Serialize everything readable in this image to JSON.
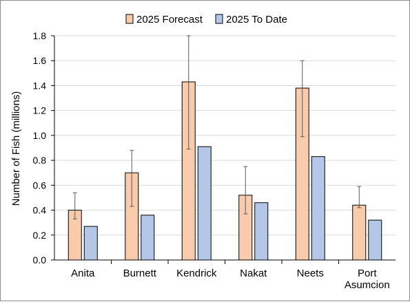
{
  "chart_data": {
    "type": "bar",
    "title": "",
    "xlabel": "",
    "ylabel": "Number of Fish (millions)",
    "categories": [
      [
        "Anita"
      ],
      [
        "Burnett"
      ],
      [
        "Kendrick"
      ],
      [
        "Nakat"
      ],
      [
        "Neets"
      ],
      [
        "Port",
        "Asumcion"
      ]
    ],
    "series": [
      {
        "name": "2025 Forecast",
        "color": "#f8cbad",
        "values": [
          0.4,
          0.7,
          1.43,
          0.52,
          1.38,
          0.44
        ],
        "error_low": [
          0.33,
          0.43,
          0.89,
          0.37,
          0.99,
          0.42
        ],
        "error_high": [
          0.54,
          0.88,
          1.8,
          0.75,
          1.6,
          0.59
        ]
      },
      {
        "name": "2025 To Date",
        "color": "#b4c7e7",
        "values": [
          0.27,
          0.36,
          0.91,
          0.46,
          0.83,
          0.32
        ]
      }
    ],
    "ylim": [
      0,
      1.8
    ],
    "yticks": [
      "0.0",
      "0.2",
      "0.4",
      "0.6",
      "0.8",
      "1.0",
      "1.2",
      "1.4",
      "1.6",
      "1.8"
    ],
    "grid": true,
    "legend_position": "top-center"
  }
}
